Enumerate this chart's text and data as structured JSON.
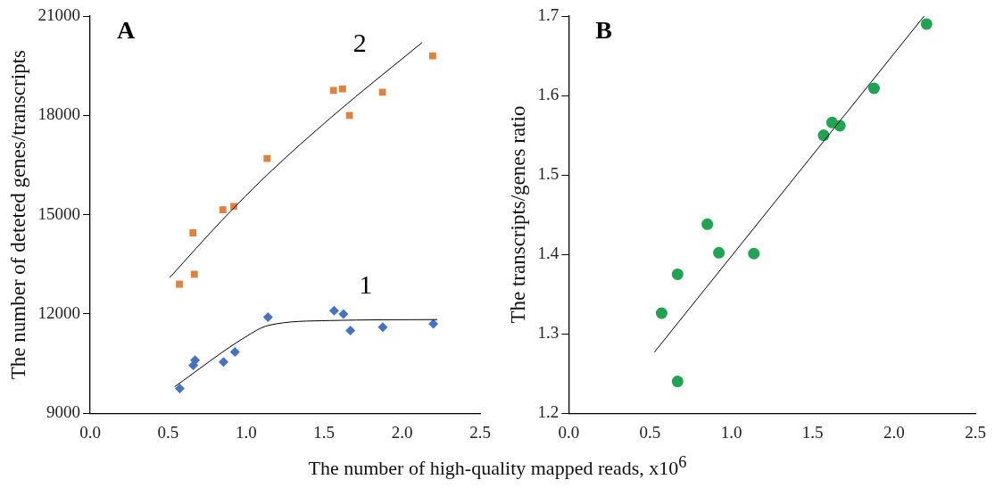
{
  "chart_data": [
    {
      "type": "scatter",
      "xlabel": "The number of high-quality mapped reads, x10$^{6}$",
      "ylabel": "The number of deteted genes/transcripts",
      "annotations": [
        "A"
      ],
      "series": [
        {
          "type": "scatter",
          "color": "#e0823d",
          "marker": "square",
          "x": [
            0.572,
            0.659,
            0.668,
            0.851,
            0.921,
            1.134,
            1.56,
            1.618,
            1.662,
            1.874,
            2.196
          ],
          "values": [
            12900,
            14450,
            13200,
            15150,
            15250,
            16700,
            18750,
            18800,
            18000,
            18700,
            19800
          ]
        },
        {
          "type": "scatter",
          "color": "#4472c4",
          "marker": "diamond",
          "x": [
            0.574,
            0.661,
            0.672,
            0.855,
            0.928,
            1.14,
            1.564,
            1.624,
            1.668,
            1.876,
            2.2
          ],
          "values": [
            9750,
            10450,
            10600,
            10550,
            10850,
            11900,
            12100,
            12000,
            11500,
            11600,
            11700
          ]
        },
        {
          "type": "line",
          "name": "2",
          "color": "#000000",
          "marker": "none",
          "x": [
            0.51,
            0.849,
            1.134,
            1.56,
            2.128
          ],
          "values": [
            13100,
            14850,
            16200,
            18000,
            20200
          ]
        },
        {
          "type": "line",
          "name": "1",
          "color": "#000000",
          "marker": "none",
          "x": [
            0.541,
            0.994,
            1.14,
            1.535,
            2.226
          ],
          "values": [
            9800,
            11300,
            11650,
            11800,
            11830
          ]
        }
      ],
      "xlim": [
        0,
        2.5
      ],
      "xticks": [
        {
          "value": 0,
          "label": "0.0"
        },
        0.5,
        {
          "value": 1,
          "label": "1.0"
        },
        1.5,
        {
          "value": 2,
          "label": "2.0"
        },
        2.5
      ],
      "ylim": [
        9000,
        21000
      ],
      "yticks": [
        9000,
        12000,
        15000,
        18000,
        21000
      ],
      "grid": false,
      "legend": false
    },
    {
      "type": "scatter",
      "ylabel": "The transcripts/genes ratio",
      "annotations": [
        "B"
      ],
      "series": [
        {
          "type": "scatter",
          "color": "#1fa452",
          "marker": "circle",
          "x": [
            0.571,
            0.669,
            0.669,
            0.852,
            0.923,
            1.138,
            1.567,
            1.619,
            1.667,
            1.877,
            2.2
          ],
          "values": [
            1.326,
            1.375,
            1.24,
            1.438,
            1.402,
            1.401,
            1.55,
            1.566,
            1.562,
            1.609,
            1.69
          ]
        },
        {
          "type": "line",
          "color": "#000000",
          "marker": "none",
          "x": [
            0.527,
            2.185
          ],
          "values": [
            1.277,
            1.7
          ]
        }
      ],
      "xlim": [
        0,
        2.5
      ],
      "xticks": [
        {
          "value": 0,
          "label": "0.0"
        },
        0.5,
        {
          "value": 1,
          "label": "1.0"
        },
        1.5,
        {
          "value": 2,
          "label": "2.0"
        },
        2.5
      ],
      "ylim": [
        1.2,
        1.7
      ],
      "yticks": [
        1.2,
        1.3,
        1.4,
        1.5,
        1.6,
        1.7
      ],
      "grid": false,
      "legend": false
    }
  ]
}
